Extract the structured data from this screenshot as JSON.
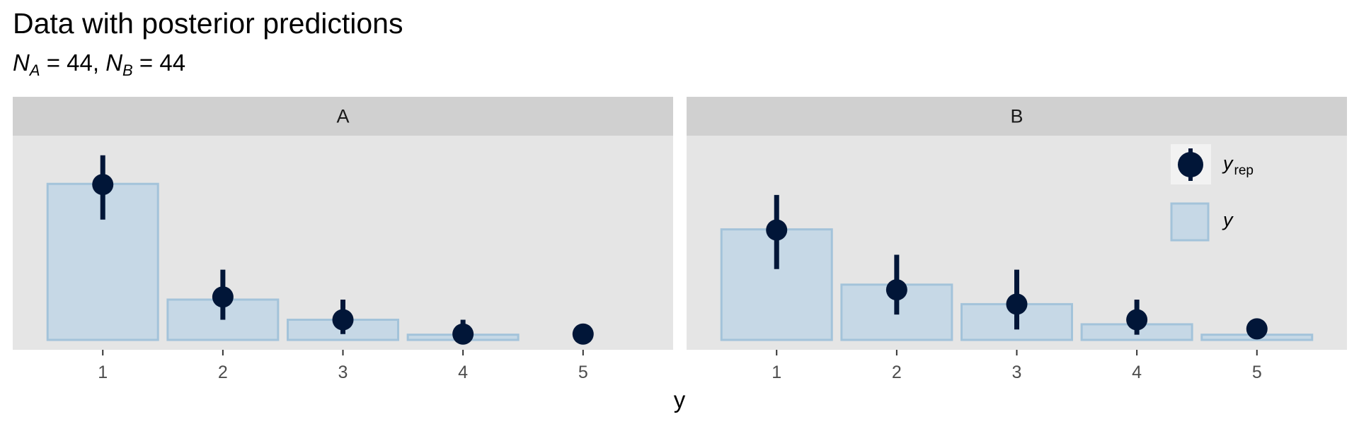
{
  "title": "Data with posterior predictions",
  "subtitle": {
    "n_a_label": "N",
    "n_a_sub": "A",
    "n_a_value": "= 44,",
    "n_b_label": "N",
    "n_b_sub": "B",
    "n_b_value": "= 44"
  },
  "colors": {
    "panel_bg": "#e5e5e5",
    "strip_bg": "#d0d0d0",
    "bar_fill": "#c6d8e6",
    "bar_stroke": "#a3c3da",
    "point": "#011638",
    "tick": "#333333"
  },
  "chart_data": {
    "type": "bar",
    "xlabel": "y",
    "ylabel": "",
    "ylim": [
      0,
      24
    ],
    "categories": [
      "1",
      "2",
      "3",
      "4",
      "5"
    ],
    "facets": [
      {
        "name": "A",
        "y_values": [
          24,
          6.2,
          3.1,
          0.8,
          0
        ],
        "yrep_mean": [
          23.9,
          6.6,
          3.1,
          0.9,
          0.9
        ],
        "yrep_low": [
          18.5,
          3.1,
          0.9,
          0,
          0.9
        ],
        "yrep_high": [
          28.4,
          10.8,
          6.2,
          3.1,
          0.9
        ]
      },
      {
        "name": "B",
        "y_values": [
          17,
          8.5,
          5.5,
          2.4,
          0.8
        ],
        "yrep_mean": [
          16.9,
          7.7,
          5.5,
          3.1,
          1.7
        ],
        "yrep_low": [
          10.9,
          3.9,
          1.6,
          0.8,
          0.9
        ],
        "yrep_high": [
          22.3,
          13.1,
          10.8,
          6.2,
          1.6
        ]
      }
    ],
    "legend": {
      "placement": "top-right",
      "entries": [
        "y_rep",
        "y"
      ]
    },
    "legend_text": {
      "yrep_main": "y",
      "yrep_sub": "rep",
      "y": "y"
    }
  }
}
